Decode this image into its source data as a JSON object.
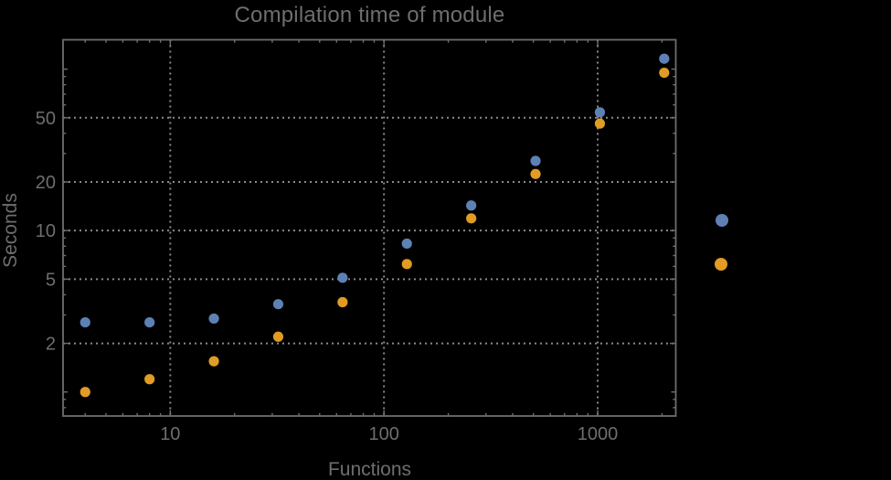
{
  "chart_data": {
    "type": "scatter",
    "title": "Compilation time of module",
    "xlabel": "Functions",
    "ylabel": "Seconds",
    "x_scale": "log",
    "y_scale": "log",
    "xlim": [
      3.15,
      2320
    ],
    "ylim": [
      0.71,
      152
    ],
    "grid": "dotted gridlines at labeled ticks only",
    "legend_position": "right-of-plot",
    "x_ticks": [
      10,
      100,
      1000
    ],
    "y_ticks": [
      2,
      5,
      10,
      20,
      50
    ],
    "x": [
      4,
      8,
      16,
      32,
      64,
      128,
      256,
      512,
      1024,
      2048
    ],
    "series": [
      {
        "name": "series-1-blue",
        "color": "#5e81b5",
        "values": [
          2.7,
          2.7,
          2.85,
          3.5,
          5.1,
          8.3,
          14.3,
          27,
          54,
          116
        ]
      },
      {
        "name": "series-2-orange",
        "color": "#e19c24",
        "values": [
          1.0,
          1.2,
          1.55,
          2.2,
          3.6,
          6.2,
          11.9,
          22.4,
          46,
          95
        ]
      }
    ],
    "legend_markers": [
      {
        "color": "#5e81b5",
        "label": ""
      },
      {
        "color": "#e19c24",
        "label": ""
      }
    ]
  },
  "colors": {
    "background": "#000000",
    "text": "#6e6e6e",
    "frame": "#6e6e6e",
    "grid": "#8a8a8a"
  }
}
